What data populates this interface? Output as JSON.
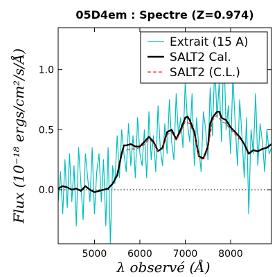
{
  "chart_data": {
    "type": "line",
    "title": "05D4em : Spectre (Z=0.974)",
    "xlabel": "λ observé (Å)",
    "ylabel": "Flux (10⁻¹⁸ ergs/cm²/s/Å)",
    "xlim": [
      4200,
      8900
    ],
    "ylim": [
      -0.45,
      1.35
    ],
    "xticks": [
      "5000",
      "6000",
      "7000",
      "8000"
    ],
    "xtick_values": [
      5000,
      6000,
      7000,
      8000
    ],
    "yticks": [
      "0.0",
      "0.5",
      "1.0"
    ],
    "ytick_values": [
      0.0,
      0.5,
      1.0
    ],
    "zero_line": true,
    "legend_position": "top-right",
    "series": [
      {
        "name": "Extrait (15 A)",
        "color": "#00bfbf",
        "style": "solid",
        "x": [
          4200,
          4250,
          4300,
          4350,
          4400,
          4450,
          4500,
          4550,
          4600,
          4650,
          4700,
          4750,
          4800,
          4850,
          4900,
          4950,
          5000,
          5050,
          5100,
          5150,
          5200,
          5250,
          5300,
          5350,
          5400,
          5450,
          5500,
          5550,
          5600,
          5650,
          5700,
          5750,
          5800,
          5850,
          5900,
          5950,
          6000,
          6050,
          6100,
          6150,
          6200,
          6250,
          6300,
          6350,
          6400,
          6450,
          6500,
          6550,
          6600,
          6650,
          6700,
          6750,
          6800,
          6850,
          6900,
          6950,
          7000,
          7050,
          7100,
          7150,
          7200,
          7250,
          7300,
          7350,
          7400,
          7450,
          7500,
          7550,
          7600,
          7650,
          7700,
          7750,
          7800,
          7850,
          7900,
          7950,
          8000,
          8050,
          8100,
          8150,
          8200,
          8250,
          8300,
          8350,
          8400,
          8450,
          8500,
          8550,
          8600,
          8650,
          8700,
          8750,
          8800,
          8850,
          8900
        ],
        "y": [
          -0.1,
          0.15,
          -0.2,
          0.25,
          -0.15,
          0.3,
          -0.1,
          0.2,
          -0.3,
          0.35,
          0.05,
          -0.25,
          0.3,
          0.1,
          -0.1,
          0.35,
          -0.2,
          0.15,
          0.3,
          -0.1,
          0.25,
          -0.3,
          0.35,
          -0.45,
          0.2,
          0.05,
          0.45,
          0.1,
          0.5,
          0.3,
          0.15,
          0.55,
          0.2,
          0.45,
          0.1,
          0.6,
          0.3,
          0.2,
          0.5,
          0.1,
          0.65,
          0.25,
          0.45,
          0.15,
          0.7,
          0.35,
          0.2,
          0.55,
          0.3,
          0.75,
          0.4,
          0.25,
          0.8,
          0.45,
          0.6,
          0.35,
          0.9,
          0.55,
          0.4,
          0.8,
          0.2,
          0.6,
          0.35,
          0.15,
          0.65,
          0.5,
          0.25,
          0.85,
          0.45,
          1.05,
          0.6,
          0.9,
          0.4,
          1.2,
          0.5,
          0.7,
          0.3,
          0.95,
          0.55,
          0.2,
          0.75,
          0.45,
          0.1,
          0.6,
          -0.2,
          0.5,
          0.3,
          0.8,
          0.2,
          0.55,
          0.4,
          0.15,
          0.5,
          0.3,
          0.35
        ]
      },
      {
        "name": "SALT2 Cal.",
        "color": "#000000",
        "style": "solid",
        "x": [
          4200,
          4300,
          4400,
          4500,
          4600,
          4700,
          4800,
          4900,
          5000,
          5100,
          5200,
          5300,
          5400,
          5500,
          5600,
          5650,
          5700,
          5800,
          5900,
          6000,
          6100,
          6200,
          6300,
          6400,
          6500,
          6600,
          6700,
          6800,
          6900,
          7000,
          7050,
          7100,
          7200,
          7300,
          7400,
          7500,
          7550,
          7600,
          7700,
          7750,
          7800,
          7900,
          8000,
          8100,
          8200,
          8300,
          8400,
          8500,
          8600,
          8700,
          8800,
          8900
        ],
        "y": [
          0.01,
          0.03,
          0.02,
          0.0,
          0.01,
          -0.01,
          0.03,
          0.0,
          -0.02,
          -0.01,
          0.0,
          0.01,
          0.05,
          0.12,
          0.3,
          0.37,
          0.37,
          0.38,
          0.36,
          0.36,
          0.4,
          0.44,
          0.4,
          0.32,
          0.35,
          0.48,
          0.5,
          0.42,
          0.5,
          0.6,
          0.61,
          0.58,
          0.48,
          0.28,
          0.26,
          0.36,
          0.55,
          0.6,
          0.65,
          0.65,
          0.6,
          0.58,
          0.52,
          0.48,
          0.44,
          0.38,
          0.3,
          0.33,
          0.32,
          0.34,
          0.35,
          0.38
        ]
      },
      {
        "name": "SALT2 (C.L.)",
        "color": "#e03020",
        "style": "dashed",
        "x": [
          5700,
          5800,
          5900,
          6000,
          6100,
          6200,
          6300,
          6400,
          6500,
          6600,
          6700,
          6800,
          6900,
          7000,
          7100,
          7200,
          7300,
          7400,
          7500,
          7600,
          7700,
          7800,
          7900,
          8000,
          8100,
          8200
        ],
        "y": [
          0.33,
          0.34,
          0.34,
          0.35,
          0.38,
          0.42,
          0.39,
          0.32,
          0.34,
          0.46,
          0.48,
          0.41,
          0.48,
          0.57,
          0.55,
          0.46,
          0.27,
          0.25,
          0.34,
          0.58,
          0.62,
          0.57,
          0.55,
          0.5,
          0.46,
          0.42
        ]
      }
    ]
  }
}
